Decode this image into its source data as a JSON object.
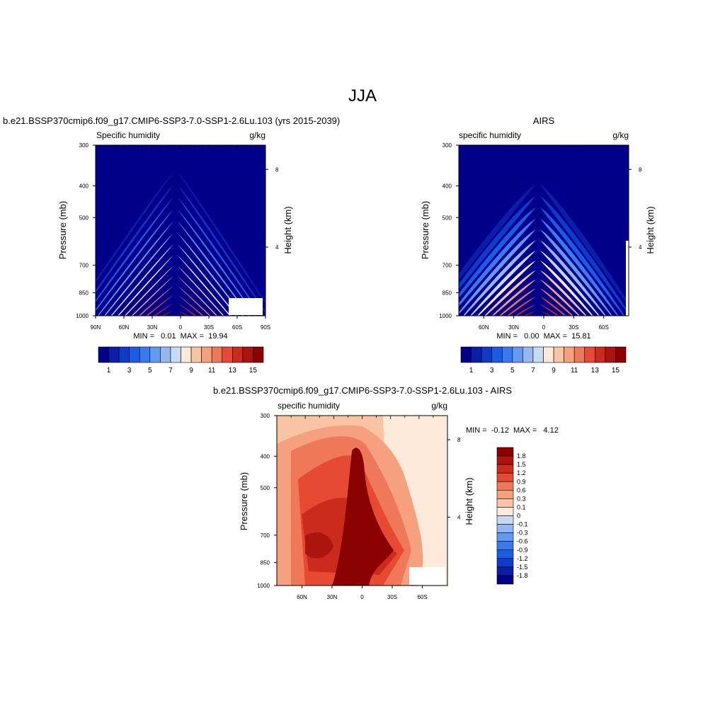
{
  "page": {
    "title": "JJA"
  },
  "colors": {
    "model_scale": [
      "#00008b",
      "#0a1ea8",
      "#0d3ccb",
      "#1a5ce6",
      "#3a7af0",
      "#6399f2",
      "#94b6f3",
      "#c6d9f5",
      "#fde9d9",
      "#f9c4a4",
      "#f5a07e",
      "#f0785a",
      "#e64a33",
      "#cc2a1c",
      "#ac1410",
      "#8b0000"
    ],
    "diff_scale": [
      "#00008b",
      "#0a1ea8",
      "#0d3ccb",
      "#1a5ce6",
      "#3a7af0",
      "#6399f2",
      "#94b6f3",
      "#c6d9f5",
      "#fde9d9",
      "#f9c4a4",
      "#f5a07e",
      "#f0785a",
      "#e64a33",
      "#cc2a1c",
      "#ac1410",
      "#8b0000"
    ]
  },
  "chart_data": [
    {
      "type": "heatmap",
      "title": "b.e21.BSSP370cmip6.f09_g17.CMIP6-SSP3-7.0-SSP1-2.6Lu.103 (yrs 2015-2039)",
      "left_label": "Specific humidity",
      "right_label": "g/kg",
      "ylabel": "Pressure (mb)",
      "ylabel_right": "Height (km)",
      "y_ticks": [
        "300",
        "400",
        "500",
        "700",
        "850",
        "1000"
      ],
      "y_tick_values": [
        300,
        400,
        500,
        700,
        850,
        1000
      ],
      "y_right_ticks": [
        "8",
        "4"
      ],
      "y_right_tick_values": [
        8,
        4
      ],
      "x_ticks": [
        "90N",
        "60N",
        "30N",
        "0",
        "30S",
        "60S",
        "90S"
      ],
      "x_tick_values": [
        90,
        60,
        30,
        0,
        -30,
        -60,
        -90
      ],
      "stats": "MIN =   0.01  MAX =  19.94",
      "colorbar_labels": [
        "1",
        "3",
        "5",
        "7",
        "9",
        "11",
        "13",
        "15"
      ],
      "peak_lat": -5,
      "min": 0.01,
      "max": 19.94
    },
    {
      "type": "heatmap",
      "title": "AIRS",
      "left_label": "specific humidity",
      "right_label": "g/kg",
      "ylabel": "Pressure (mb)",
      "ylabel_right": "Height (km)",
      "y_ticks": [
        "300",
        "400",
        "500",
        "700",
        "850",
        "1000"
      ],
      "y_tick_values": [
        300,
        400,
        500,
        700,
        850,
        1000
      ],
      "y_right_ticks": [
        "8",
        "4"
      ],
      "y_right_tick_values": [
        8,
        4
      ],
      "x_ticks": [
        "60N",
        "30N",
        "0",
        "30S",
        "60S"
      ],
      "x_tick_values": [
        60,
        30,
        0,
        -30,
        -60
      ],
      "stats": "MIN =   0.00  MAX =  15.81",
      "colorbar_labels": [
        "1",
        "3",
        "5",
        "7",
        "9",
        "11",
        "13",
        "15"
      ],
      "peak_lat": -5,
      "min": 0.0,
      "max": 15.81
    },
    {
      "type": "heatmap",
      "title": "b.e21.BSSP370cmip6.f09_g17.CMIP6-SSP3-7.0-SSP1-2.6Lu.103 - AIRS",
      "left_label": "specific humidity",
      "right_label": "g/kg",
      "ylabel": "Pressure (mb)",
      "ylabel_right": "Height (km)",
      "y_ticks": [
        "300",
        "400",
        "500",
        "700",
        "850",
        "1000"
      ],
      "y_tick_values": [
        300,
        400,
        500,
        700,
        850,
        1000
      ],
      "y_right_ticks": [
        "8",
        "4"
      ],
      "y_right_tick_values": [
        8,
        4
      ],
      "x_ticks": [
        "60N",
        "30N",
        "0",
        "30S",
        "60S"
      ],
      "x_tick_values": [
        60,
        30,
        0,
        -30,
        -60
      ],
      "stats": "MIN =  -0.12  MAX =   4.12",
      "colorbar_labels": [
        "1.8",
        "1.5",
        "1.2",
        "0.9",
        "0.6",
        "0.3",
        "0.1",
        "0",
        "-0.1",
        "-0.3",
        "-0.6",
        "-0.9",
        "-1.2",
        "-1.5",
        "-1.8"
      ],
      "min": -0.12,
      "max": 4.12
    }
  ]
}
